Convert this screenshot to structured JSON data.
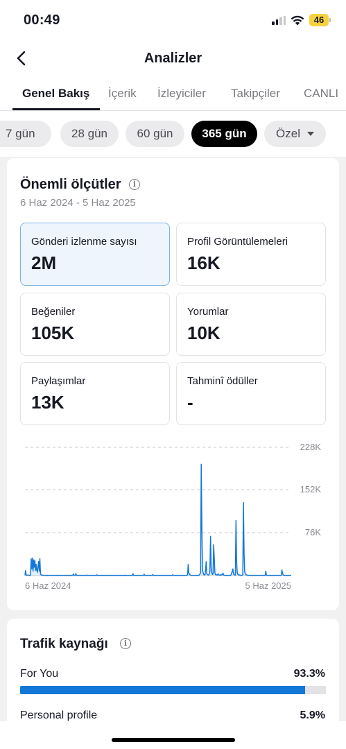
{
  "status_bar": {
    "time": "00:49",
    "battery": "46"
  },
  "header": {
    "title": "Analizler"
  },
  "tabs": [
    {
      "label": "Genel Bakış",
      "active": true
    },
    {
      "label": "İçerik"
    },
    {
      "label": "İzleyiciler"
    },
    {
      "label": "Takipçiler"
    },
    {
      "label": "CANLI"
    }
  ],
  "ranges": [
    {
      "label": "7 gün"
    },
    {
      "label": "28 gün"
    },
    {
      "label": "60 gün"
    },
    {
      "label": "365 gün",
      "active": true
    },
    {
      "label": "Özel"
    }
  ],
  "key_metrics": {
    "title": "Önemli ölçütler",
    "date_range": "6 Haz 2024 - 5 Haz 2025",
    "items": [
      {
        "label": "Gönderi izlenme sayısı",
        "value": "2M",
        "selected": true
      },
      {
        "label": "Profil Görüntülemeleri",
        "value": "16K"
      },
      {
        "label": "Beğeniler",
        "value": "105K"
      },
      {
        "label": "Yorumlar",
        "value": "10K"
      },
      {
        "label": "Paylaşımlar",
        "value": "13K"
      },
      {
        "label": "Tahminî ödüller",
        "value": "-"
      }
    ]
  },
  "chart_data": {
    "type": "line",
    "y_ticks": [
      "228K",
      "152K",
      "76K"
    ],
    "y_tick_values": [
      228000,
      152000,
      76000
    ],
    "x_labels": [
      "6 Haz 2024",
      "5 Haz 2025"
    ],
    "ylim": [
      0,
      228000
    ],
    "color": "#1377d8",
    "values": [
      500,
      9000,
      1000,
      500,
      800,
      1200,
      700,
      500,
      400,
      600,
      30000,
      12000,
      31000,
      8000,
      28000,
      15000,
      27000,
      9000,
      20000,
      10000,
      6000,
      16000,
      25000,
      8000,
      30000,
      3000,
      1500,
      1000,
      800,
      700,
      600,
      500,
      500,
      500,
      400,
      500,
      600,
      500,
      400,
      500,
      500,
      500,
      400,
      400,
      500,
      500,
      400,
      500,
      500,
      400,
      500,
      600,
      500,
      400,
      500,
      500,
      600,
      500,
      400,
      500,
      500,
      500,
      400,
      500,
      500,
      500,
      400,
      500,
      500,
      500,
      500,
      600,
      500,
      500,
      400,
      500,
      500,
      500,
      3000,
      1000,
      500,
      500,
      3500,
      800,
      500,
      500,
      400,
      500,
      500,
      600,
      500,
      500,
      400,
      500,
      500,
      500,
      400,
      500,
      500,
      600,
      500,
      800,
      400,
      500,
      500,
      500,
      400,
      500,
      500,
      500,
      500,
      500,
      400,
      500,
      500,
      500,
      1500,
      500,
      500,
      500,
      500,
      500,
      400,
      500,
      500,
      500,
      400,
      500,
      500,
      500,
      500,
      500,
      400,
      500,
      500,
      500,
      400,
      500,
      500,
      500,
      500,
      500,
      400,
      500,
      500,
      500,
      400,
      500,
      500,
      500,
      500,
      500,
      400,
      500,
      500,
      500,
      400,
      500,
      500,
      500,
      500,
      800,
      400,
      500,
      500,
      500,
      400,
      500,
      500,
      500,
      500,
      500,
      400,
      500,
      3500,
      800,
      500,
      500,
      400,
      500,
      500,
      500,
      400,
      500,
      500,
      500,
      400,
      500,
      500,
      500,
      500,
      500,
      2500,
      500,
      500,
      500,
      400,
      500,
      500,
      500,
      500,
      500,
      400,
      500,
      500,
      500,
      2000,
      500,
      500,
      500,
      500,
      500,
      400,
      500,
      500,
      500,
      400,
      500,
      500,
      500,
      500,
      500,
      400,
      500,
      500,
      500,
      400,
      500,
      500,
      500,
      500,
      500,
      400,
      500,
      500,
      500,
      400,
      500,
      1500,
      500,
      500,
      500,
      400,
      500,
      500,
      500,
      400,
      500,
      500,
      500,
      500,
      500,
      400,
      500,
      500,
      500,
      400,
      500,
      500,
      500,
      500,
      800,
      1500,
      20000,
      5000,
      3000,
      1200,
      800,
      600,
      500,
      500,
      500,
      400,
      500,
      500,
      500,
      400,
      500,
      500,
      500,
      600,
      1500,
      3000,
      5000,
      198000,
      90000,
      10000,
      5000,
      2000,
      1500,
      1200,
      10000,
      25000,
      3000,
      2000,
      1500,
      1000,
      3000,
      8000,
      70000,
      15000,
      5000,
      2000,
      3000,
      55000,
      30000,
      5000,
      2000,
      1500,
      1200,
      1000,
      3000,
      1500,
      1000,
      800,
      1500,
      1000,
      2000,
      1500,
      4500,
      1200,
      800,
      600,
      500,
      500,
      500,
      400,
      500,
      500,
      500,
      500,
      500,
      1200,
      4000,
      8000,
      12000,
      3000,
      1500,
      1200,
      1000,
      98000,
      25000,
      5000,
      2000,
      1500,
      1200,
      1000,
      800,
      600,
      500,
      500,
      2000,
      130000,
      40000,
      8000,
      3000,
      1500,
      1200,
      1000,
      800,
      600,
      500,
      500,
      500,
      400,
      500,
      500,
      500,
      500,
      500,
      500,
      500,
      400,
      500,
      500,
      500,
      400,
      500,
      500,
      500,
      500,
      500,
      400,
      500,
      500,
      500,
      400,
      500,
      8000,
      1000,
      500,
      500,
      400,
      500,
      500,
      500,
      400,
      500,
      500,
      500,
      500,
      500,
      400,
      500,
      500,
      500,
      400,
      500,
      500,
      500,
      500,
      500,
      400,
      500,
      10000,
      4000,
      1500,
      800,
      500,
      500,
      500,
      500,
      400,
      500,
      500,
      500,
      400,
      500,
      500,
      500
    ]
  },
  "traffic": {
    "title": "Trafik kaynağı",
    "items": [
      {
        "label": "For You",
        "value": "93.3%",
        "percent": 93.3
      },
      {
        "label": "Personal profile",
        "value": "5.9%",
        "percent": 5.9
      }
    ]
  }
}
